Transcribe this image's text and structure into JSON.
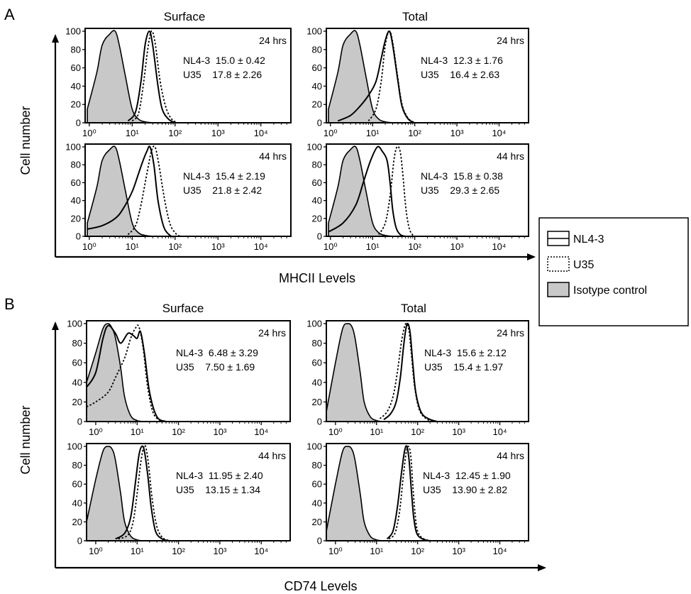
{
  "colors": {
    "isotype_fill": "#c8c8c8",
    "line": "#000000",
    "background": "#ffffff"
  },
  "panel_a": {
    "letter": "A",
    "col_titles": [
      "Surface",
      "Total"
    ],
    "ylabel": "Cell number",
    "xlabel": "MHCII Levels"
  },
  "panel_b": {
    "letter": "B",
    "col_titles": [
      "Surface",
      "Total"
    ],
    "ylabel": "Cell number",
    "xlabel": "CD74 Levels"
  },
  "legend": {
    "items": [
      {
        "label": "NL4-3",
        "style": "solid"
      },
      {
        "label": "U35",
        "style": "dotted"
      },
      {
        "label": "Isotype control",
        "style": "filled"
      }
    ]
  },
  "chart_data": [
    {
      "type": "area",
      "panel": "A",
      "title": "Surface",
      "time": "24 hrs",
      "stats": [
        "NL4-3  15.0 ± 0.42",
        "U35    17.8 ± 2.26"
      ],
      "ylim": [
        0,
        100
      ],
      "yticks": [
        0,
        20,
        40,
        60,
        80,
        100
      ],
      "xscale": "log",
      "xlim": [
        0.8,
        50000
      ],
      "xticks": [
        "10⁰",
        "10¹",
        "10²",
        "10³",
        "10⁴"
      ],
      "series": [
        {
          "name": "Isotype control",
          "x": [
            0.9,
            1.5,
            2.0,
            3.0,
            4.0,
            5.0,
            7.0,
            10,
            14,
            20,
            30
          ],
          "y": [
            15,
            55,
            85,
            97,
            100,
            85,
            50,
            15,
            4,
            1,
            0
          ]
        },
        {
          "name": "NL4-3",
          "x": [
            8,
            12,
            16,
            20,
            25,
            30,
            40,
            50,
            70,
            100
          ],
          "y": [
            2,
            12,
            45,
            85,
            100,
            85,
            40,
            15,
            4,
            0
          ]
        },
        {
          "name": "U35",
          "x": [
            10,
            14,
            18,
            23,
            28,
            34,
            45,
            60,
            80,
            110
          ],
          "y": [
            2,
            10,
            40,
            80,
            100,
            88,
            45,
            18,
            5,
            0
          ]
        }
      ]
    },
    {
      "type": "area",
      "panel": "A",
      "title": "Total",
      "time": "24 hrs",
      "stats": [
        "NL4-3  12.3 ± 1.76",
        "U35    16.4 ± 2.63"
      ],
      "ylim": [
        0,
        100
      ],
      "yticks": [
        0,
        20,
        40,
        60,
        80,
        100
      ],
      "xscale": "log",
      "xlim": [
        0.8,
        50000
      ],
      "xticks": [
        "10⁰",
        "10¹",
        "10²",
        "10³",
        "10⁴"
      ],
      "series": [
        {
          "name": "Isotype control",
          "x": [
            0.9,
            1.5,
            2.0,
            3.0,
            4.0,
            5.0,
            7.0,
            10,
            14,
            20,
            30
          ],
          "y": [
            15,
            55,
            85,
            97,
            100,
            85,
            50,
            15,
            4,
            1,
            0
          ]
        },
        {
          "name": "NL4-3",
          "x": [
            1.5,
            3,
            5,
            8,
            12,
            16,
            20,
            25,
            30,
            40,
            50,
            70,
            100
          ],
          "y": [
            2,
            8,
            18,
            30,
            45,
            70,
            90,
            100,
            85,
            45,
            18,
            4,
            0
          ]
        },
        {
          "name": "U35",
          "x": [
            8,
            12,
            16,
            20,
            25,
            30,
            38,
            50,
            70,
            100
          ],
          "y": [
            2,
            15,
            45,
            85,
            100,
            88,
            55,
            20,
            5,
            0
          ]
        }
      ]
    },
    {
      "type": "area",
      "panel": "A",
      "title": "Surface",
      "time": "44 hrs",
      "stats": [
        "NL4-3  15.4 ± 2.19",
        "U35    21.8 ± 2.42"
      ],
      "ylim": [
        0,
        100
      ],
      "yticks": [
        0,
        20,
        40,
        60,
        80,
        100
      ],
      "xscale": "log",
      "xlim": [
        0.8,
        50000
      ],
      "xticks": [
        "10⁰",
        "10¹",
        "10²",
        "10³",
        "10⁴"
      ],
      "series": [
        {
          "name": "Isotype control",
          "x": [
            0.9,
            1.5,
            2.0,
            3.0,
            4.0,
            5.0,
            7.0,
            10,
            14,
            20,
            30
          ],
          "y": [
            15,
            55,
            85,
            97,
            100,
            85,
            50,
            15,
            4,
            1,
            0
          ]
        },
        {
          "name": "NL4-3",
          "x": [
            0.9,
            2,
            4,
            6,
            10,
            14,
            18,
            22,
            26,
            32,
            40,
            55,
            80
          ],
          "y": [
            8,
            12,
            20,
            30,
            50,
            70,
            85,
            95,
            100,
            80,
            40,
            10,
            0
          ]
        },
        {
          "name": "U35",
          "x": [
            8,
            12,
            16,
            22,
            28,
            34,
            42,
            55,
            75,
            100,
            130
          ],
          "y": [
            2,
            12,
            35,
            70,
            95,
            100,
            80,
            45,
            15,
            4,
            0
          ]
        }
      ]
    },
    {
      "type": "area",
      "panel": "A",
      "title": "Total",
      "time": "44 hrs",
      "stats": [
        "NL4-3  15.8 ± 0.38",
        "U35    29.3 ± 2.65"
      ],
      "ylim": [
        0,
        100
      ],
      "yticks": [
        0,
        20,
        40,
        60,
        80,
        100
      ],
      "xscale": "log",
      "xlim": [
        0.8,
        50000
      ],
      "xticks": [
        "10⁰",
        "10¹",
        "10²",
        "10³",
        "10⁴"
      ],
      "series": [
        {
          "name": "Isotype control",
          "x": [
            0.9,
            1.5,
            2.0,
            3.0,
            4.0,
            5.0,
            7.0,
            10,
            14,
            20,
            30
          ],
          "y": [
            15,
            55,
            85,
            97,
            100,
            85,
            50,
            15,
            4,
            1,
            0
          ]
        },
        {
          "name": "NL4-3",
          "x": [
            0.9,
            2,
            4,
            6,
            9,
            13,
            17,
            22,
            26,
            30,
            36,
            45,
            60
          ],
          "y": [
            5,
            15,
            35,
            60,
            85,
            100,
            95,
            85,
            60,
            30,
            10,
            2,
            0
          ]
        },
        {
          "name": "U35",
          "x": [
            14,
            20,
            26,
            32,
            38,
            45,
            52,
            62,
            75,
            95
          ],
          "y": [
            2,
            15,
            45,
            85,
            100,
            95,
            70,
            30,
            8,
            0
          ]
        }
      ]
    },
    {
      "type": "area",
      "panel": "B",
      "title": "Surface",
      "time": "24 hrs",
      "stats": [
        "NL4-3  6.48 ± 3.29",
        "U35    7.50 ± 1.69"
      ],
      "ylim": [
        0,
        100
      ],
      "yticks": [
        0,
        20,
        40,
        60,
        80,
        100
      ],
      "xscale": "log",
      "xlim": [
        0.6,
        50000
      ],
      "xticks": [
        "10⁰",
        "10¹",
        "10²",
        "10³",
        "10⁴"
      ],
      "series": [
        {
          "name": "Isotype control",
          "x": [
            0.6,
            1.0,
            1.5,
            2.0,
            2.5,
            3.0,
            4.0,
            5.0,
            7.0,
            10,
            14
          ],
          "y": [
            40,
            70,
            95,
            100,
            95,
            85,
            55,
            25,
            6,
            1,
            0
          ]
        },
        {
          "name": "NL4-3",
          "x": [
            0.6,
            1.0,
            1.5,
            2.0,
            3.0,
            4.0,
            6.0,
            8.0,
            10,
            12,
            15,
            20,
            30,
            50
          ],
          "y": [
            35,
            50,
            85,
            98,
            90,
            80,
            90,
            88,
            85,
            92,
            70,
            30,
            5,
            0
          ]
        },
        {
          "name": "U35",
          "x": [
            0.6,
            1.0,
            2.0,
            3.0,
            5.0,
            7.0,
            9.0,
            11,
            14,
            18,
            25,
            40
          ],
          "y": [
            15,
            20,
            30,
            45,
            65,
            85,
            95,
            97,
            75,
            35,
            8,
            0
          ]
        }
      ]
    },
    {
      "type": "area",
      "panel": "B",
      "title": "Total",
      "time": "24 hrs",
      "stats": [
        "NL4-3  15.6 ± 2.12",
        "U35    15.4 ± 1.97"
      ],
      "ylim": [
        0,
        100
      ],
      "yticks": [
        0,
        20,
        40,
        60,
        80,
        100
      ],
      "xscale": "log",
      "xlim": [
        0.6,
        50000
      ],
      "xticks": [
        "10⁰",
        "10¹",
        "10²",
        "10³",
        "10⁴"
      ],
      "series": [
        {
          "name": "Isotype control",
          "x": [
            0.6,
            1.0,
            1.5,
            2.0,
            2.5,
            3.0,
            4.0,
            5.0,
            7.0,
            10,
            14
          ],
          "y": [
            10,
            60,
            95,
            100,
            97,
            85,
            50,
            20,
            5,
            1,
            0
          ]
        },
        {
          "name": "NL4-3",
          "x": [
            15,
            22,
            30,
            38,
            45,
            52,
            58,
            66,
            76,
            90,
            120,
            180,
            300
          ],
          "y": [
            2,
            8,
            20,
            45,
            75,
            95,
            100,
            90,
            60,
            30,
            10,
            3,
            0
          ]
        },
        {
          "name": "U35",
          "x": [
            12,
            18,
            25,
            32,
            40,
            48,
            55,
            62,
            72,
            85,
            110,
            160,
            250
          ],
          "y": [
            3,
            10,
            25,
            50,
            80,
            97,
            100,
            92,
            65,
            35,
            12,
            3,
            0
          ]
        }
      ]
    },
    {
      "type": "area",
      "panel": "B",
      "title": "Surface",
      "time": "44 hrs",
      "stats": [
        "NL4-3  11.95 ± 2.40",
        "U35    13.15 ± 1.34"
      ],
      "ylim": [
        0,
        100
      ],
      "yticks": [
        0,
        20,
        40,
        60,
        80,
        100
      ],
      "xscale": "log",
      "xlim": [
        0.6,
        50000
      ],
      "xticks": [
        "10⁰",
        "10¹",
        "10²",
        "10³",
        "10⁴"
      ],
      "series": [
        {
          "name": "Isotype control",
          "x": [
            0.6,
            1.0,
            1.5,
            2.0,
            2.5,
            3.0,
            4.0,
            5.0,
            7.0,
            10,
            14
          ],
          "y": [
            20,
            65,
            95,
            100,
            97,
            85,
            50,
            20,
            5,
            1,
            0
          ]
        },
        {
          "name": "NL4-3",
          "x": [
            3,
            5,
            7,
            9,
            11,
            13,
            15,
            18,
            22,
            28,
            40,
            60
          ],
          "y": [
            2,
            8,
            25,
            60,
            90,
            100,
            95,
            70,
            35,
            10,
            2,
            0
          ]
        },
        {
          "name": "U35",
          "x": [
            3.5,
            6,
            8,
            10,
            12,
            14,
            16,
            19,
            23,
            30,
            42,
            65
          ],
          "y": [
            2,
            6,
            20,
            50,
            80,
            97,
            100,
            80,
            45,
            15,
            3,
            0
          ]
        }
      ]
    },
    {
      "type": "area",
      "panel": "B",
      "title": "Total",
      "time": "44 hrs",
      "stats": [
        "NL4-3  12.45 ± 1.90",
        "U35    13.90 ± 2.82"
      ],
      "ylim": [
        0,
        100
      ],
      "yticks": [
        0,
        20,
        40,
        60,
        80,
        100
      ],
      "xscale": "log",
      "xlim": [
        0.6,
        50000
      ],
      "xticks": [
        "10⁰",
        "10¹",
        "10²",
        "10³",
        "10⁴"
      ],
      "series": [
        {
          "name": "Isotype control",
          "x": [
            0.6,
            1.0,
            1.5,
            2.0,
            2.5,
            3.0,
            4.0,
            5.0,
            7.0,
            10,
            14
          ],
          "y": [
            10,
            60,
            95,
            100,
            97,
            85,
            50,
            20,
            5,
            1,
            0
          ]
        },
        {
          "name": "NL4-3",
          "x": [
            18,
            25,
            32,
            40,
            48,
            55,
            62,
            70,
            80,
            95,
            130,
            200
          ],
          "y": [
            2,
            10,
            35,
            70,
            95,
            100,
            85,
            55,
            25,
            8,
            2,
            0
          ]
        },
        {
          "name": "U35",
          "x": [
            20,
            28,
            36,
            44,
            52,
            60,
            68,
            76,
            86,
            100,
            140,
            220
          ],
          "y": [
            2,
            8,
            30,
            65,
            92,
            100,
            90,
            60,
            30,
            10,
            2,
            0
          ]
        }
      ]
    }
  ]
}
